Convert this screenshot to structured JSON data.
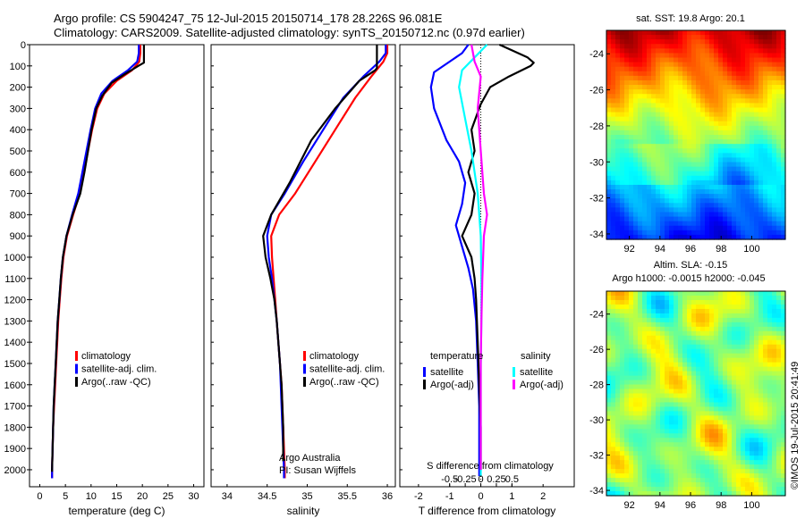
{
  "header": {
    "line1": "Argo profile: CS 5904247_75 12-Jul-2015 20150714_178 28.226S 96.081E",
    "line2": "Climatology: CARS2009. Satellite-adjusted climatology: synTS_20150712.nc (0.97d earlier)"
  },
  "side_stamp": "©IMOS 19-Jul-2015 20:41:49",
  "colors": {
    "red": "#ff0000",
    "blue": "#0000ff",
    "black": "#000000",
    "cyan": "#00ffff",
    "magenta": "#ff00ff"
  },
  "chart_data": [
    {
      "id": "temperature",
      "type": "line",
      "xlabel": "temperature (deg C)",
      "xlim": [
        -2,
        32
      ],
      "xticks": [
        0,
        5,
        10,
        15,
        20,
        25,
        30
      ],
      "ylim": [
        2080,
        0
      ],
      "yticks": [
        0,
        100,
        200,
        300,
        400,
        500,
        600,
        700,
        800,
        900,
        1000,
        1100,
        1200,
        1300,
        1400,
        1500,
        1600,
        1700,
        1800,
        1900,
        2000
      ],
      "legend": {
        "placement": "lower-middle",
        "entries": [
          "climatology",
          "satellite-adj. clim.",
          "Argo(..raw -QC)"
        ]
      },
      "series": [
        {
          "name": "climatology",
          "color": "#ff0000",
          "points": [
            [
              19.6,
              0
            ],
            [
              19.6,
              40
            ],
            [
              19.4,
              80
            ],
            [
              18,
              120
            ],
            [
              15,
              170
            ],
            [
              12.6,
              230
            ],
            [
              11.2,
              300
            ],
            [
              10.2,
              400
            ],
            [
              9.4,
              500
            ],
            [
              8.6,
              600
            ],
            [
              7.8,
              700
            ],
            [
              6.5,
              800
            ],
            [
              5.3,
              900
            ],
            [
              4.6,
              1000
            ],
            [
              4.2,
              1100
            ],
            [
              3.9,
              1200
            ],
            [
              3.6,
              1300
            ],
            [
              3.4,
              1400
            ],
            [
              3.2,
              1500
            ],
            [
              3.0,
              1600
            ],
            [
              2.8,
              1700
            ],
            [
              2.6,
              1800
            ],
            [
              2.5,
              1900
            ],
            [
              2.4,
              2000
            ],
            [
              2.4,
              2040
            ]
          ]
        },
        {
          "name": "satellite-adj. clim.",
          "color": "#0000ff",
          "points": [
            [
              19.3,
              0
            ],
            [
              19.3,
              40
            ],
            [
              19.0,
              80
            ],
            [
              17.2,
              120
            ],
            [
              14.2,
              170
            ],
            [
              12.0,
              230
            ],
            [
              10.8,
              300
            ],
            [
              9.9,
              400
            ],
            [
              9.1,
              500
            ],
            [
              8.3,
              600
            ],
            [
              7.5,
              700
            ],
            [
              6.3,
              800
            ],
            [
              5.2,
              900
            ],
            [
              4.5,
              1000
            ],
            [
              4.1,
              1100
            ],
            [
              3.8,
              1200
            ],
            [
              3.5,
              1300
            ],
            [
              3.3,
              1400
            ],
            [
              3.1,
              1500
            ],
            [
              2.9,
              1600
            ],
            [
              2.7,
              1700
            ],
            [
              2.6,
              1800
            ],
            [
              2.5,
              1900
            ],
            [
              2.4,
              2000
            ],
            [
              2.4,
              2040
            ]
          ]
        },
        {
          "name": "Argo(..raw -QC)",
          "color": "#000000",
          "points": [
            [
              20.3,
              0
            ],
            [
              20.3,
              85
            ],
            [
              19.2,
              100
            ],
            [
              16.5,
              140
            ],
            [
              14.0,
              180
            ],
            [
              12.2,
              240
            ],
            [
              11.0,
              300
            ],
            [
              10.1,
              400
            ],
            [
              9.4,
              500
            ],
            [
              8.7,
              600
            ],
            [
              7.9,
              700
            ],
            [
              6.4,
              800
            ],
            [
              5.2,
              900
            ],
            [
              4.5,
              1000
            ],
            [
              4.1,
              1100
            ],
            [
              3.8,
              1200
            ],
            [
              3.5,
              1300
            ],
            [
              3.3,
              1400
            ],
            [
              3.1,
              1500
            ],
            [
              2.9,
              1600
            ],
            [
              2.7,
              1700
            ],
            [
              2.6,
              1800
            ],
            [
              2.5,
              1900
            ],
            [
              2.4,
              2000
            ],
            [
              2.4,
              2010
            ]
          ]
        }
      ]
    },
    {
      "id": "salinity",
      "type": "line",
      "xlabel": "salinity",
      "xlim": [
        33.8,
        36.1
      ],
      "xticks": [
        34,
        34.5,
        35,
        35.5,
        36
      ],
      "ylim": [
        2080,
        0
      ],
      "legend": {
        "placement": "lower-middle",
        "entries": [
          "climatology",
          "satellite-adj. clim.",
          "Argo(..raw -QC)"
        ]
      },
      "annotation": [
        "Argo Australia",
        "PI: Susan Wijffels"
      ],
      "series": [
        {
          "name": "climatology",
          "color": "#ff0000",
          "points": [
            [
              36.0,
              0
            ],
            [
              36.0,
              40
            ],
            [
              35.95,
              80
            ],
            [
              35.8,
              150
            ],
            [
              35.6,
              250
            ],
            [
              35.35,
              400
            ],
            [
              35.1,
              550
            ],
            [
              34.85,
              700
            ],
            [
              34.65,
              800
            ],
            [
              34.55,
              900
            ],
            [
              34.56,
              1000
            ],
            [
              34.58,
              1100
            ],
            [
              34.6,
              1200
            ],
            [
              34.62,
              1300
            ],
            [
              34.64,
              1400
            ],
            [
              34.66,
              1500
            ],
            [
              34.68,
              1600
            ],
            [
              34.69,
              1700
            ],
            [
              34.7,
              1800
            ],
            [
              34.71,
              1900
            ],
            [
              34.72,
              2000
            ],
            [
              34.72,
              2040
            ]
          ]
        },
        {
          "name": "satellite-adj. clim.",
          "color": "#0000ff",
          "points": [
            [
              35.98,
              0
            ],
            [
              35.98,
              40
            ],
            [
              35.9,
              80
            ],
            [
              35.7,
              150
            ],
            [
              35.45,
              250
            ],
            [
              35.2,
              400
            ],
            [
              34.95,
              550
            ],
            [
              34.72,
              700
            ],
            [
              34.55,
              800
            ],
            [
              34.5,
              900
            ],
            [
              34.52,
              1000
            ],
            [
              34.56,
              1100
            ],
            [
              34.59,
              1200
            ],
            [
              34.62,
              1300
            ],
            [
              34.64,
              1400
            ],
            [
              34.66,
              1500
            ],
            [
              34.67,
              1600
            ],
            [
              34.68,
              1700
            ],
            [
              34.69,
              1800
            ],
            [
              34.7,
              1900
            ],
            [
              34.71,
              2000
            ],
            [
              34.71,
              2040
            ]
          ]
        },
        {
          "name": "Argo(..raw -QC)",
          "color": "#000000",
          "points": [
            [
              35.87,
              0
            ],
            [
              35.87,
              110
            ],
            [
              35.85,
              120
            ],
            [
              35.65,
              170
            ],
            [
              35.35,
              300
            ],
            [
              35.05,
              450
            ],
            [
              34.78,
              650
            ],
            [
              34.55,
              800
            ],
            [
              34.45,
              900
            ],
            [
              34.48,
              1000
            ],
            [
              34.54,
              1100
            ],
            [
              34.59,
              1200
            ],
            [
              34.62,
              1300
            ],
            [
              34.64,
              1400
            ],
            [
              34.66,
              1500
            ],
            [
              34.68,
              1600
            ],
            [
              34.69,
              1700
            ],
            [
              34.7,
              1800
            ],
            [
              34.7,
              1900
            ],
            [
              34.7,
              1960
            ]
          ]
        }
      ]
    },
    {
      "id": "differences",
      "type": "line",
      "xlabel": "T difference from climatology",
      "xlabel_top": "S difference from climatology",
      "xlim": [
        -2.6,
        3.0
      ],
      "xticks": [
        -2,
        -1,
        0,
        1,
        2
      ],
      "s_xticks": [
        -0.5,
        -0.25,
        0,
        0.25,
        0.5
      ],
      "ylim": [
        2080,
        0
      ],
      "zero_line": true,
      "legend": {
        "placement": "lower",
        "temperature_title": "temperature",
        "salinity_title": "salinity",
        "entries": [
          "satellite",
          "Argo(-adj)",
          "satellite",
          "Argo(-adj)"
        ]
      },
      "series": [
        {
          "name": "T satellite",
          "color": "#0000ff",
          "points": [
            [
              -0.4,
              0
            ],
            [
              -0.6,
              40
            ],
            [
              -1.0,
              80
            ],
            [
              -1.5,
              130
            ],
            [
              -1.6,
              200
            ],
            [
              -1.5,
              300
            ],
            [
              -1.1,
              450
            ],
            [
              -0.7,
              550
            ],
            [
              -0.5,
              650
            ],
            [
              -0.6,
              750
            ],
            [
              -0.8,
              850
            ],
            [
              -0.6,
              950
            ],
            [
              -0.4,
              1050
            ],
            [
              -0.25,
              1150
            ],
            [
              -0.15,
              1300
            ],
            [
              -0.1,
              1500
            ],
            [
              -0.05,
              1700
            ],
            [
              -0.05,
              2000
            ],
            [
              -0.05,
              2030
            ]
          ]
        },
        {
          "name": "T Argo(-adj)",
          "color": "#000000",
          "points": [
            [
              0.6,
              0
            ],
            [
              1.5,
              60
            ],
            [
              1.7,
              85
            ],
            [
              1.6,
              100
            ],
            [
              0.9,
              150
            ],
            [
              0.3,
              200
            ],
            [
              0.0,
              280
            ],
            [
              -0.3,
              400
            ],
            [
              -0.2,
              500
            ],
            [
              -0.4,
              600
            ],
            [
              -0.2,
              700
            ],
            [
              -0.3,
              800
            ],
            [
              -0.6,
              900
            ],
            [
              -0.3,
              1000
            ],
            [
              -0.2,
              1100
            ],
            [
              -0.15,
              1200
            ],
            [
              -0.1,
              1400
            ],
            [
              -0.05,
              1600
            ],
            [
              0.0,
              1800
            ],
            [
              0.0,
              2000
            ]
          ]
        },
        {
          "name": "S satellite",
          "color": "#00ffff",
          "points": [
            [
              0.2,
              0
            ],
            [
              -0.2,
              60
            ],
            [
              -0.6,
              120
            ],
            [
              -0.7,
              200
            ],
            [
              -0.5,
              350
            ],
            [
              -0.3,
              500
            ],
            [
              -0.1,
              700
            ],
            [
              0.0,
              900
            ],
            [
              0.02,
              1100
            ],
            [
              0.02,
              1300
            ],
            [
              0.0,
              1500
            ],
            [
              0.0,
              1700
            ],
            [
              0.0,
              2000
            ],
            [
              0.0,
              2030
            ]
          ]
        },
        {
          "name": "S Argo(-adj)",
          "color": "#ff00ff",
          "points": [
            [
              -0.3,
              0
            ],
            [
              -0.2,
              80
            ],
            [
              0.0,
              150
            ],
            [
              -0.1,
              300
            ],
            [
              0.0,
              500
            ],
            [
              0.1,
              700
            ],
            [
              0.2,
              800
            ],
            [
              0.1,
              900
            ],
            [
              0.05,
              1100
            ],
            [
              0.02,
              1300
            ],
            [
              0.0,
              1500
            ],
            [
              0.0,
              1700
            ],
            [
              0.0,
              1900
            ],
            [
              0.0,
              2000
            ]
          ]
        }
      ]
    },
    {
      "id": "sst_map",
      "type": "heatmap",
      "title": "sat. SST: 19.8  Argo: 20.1",
      "xticks": [
        92,
        94,
        96,
        98,
        100
      ],
      "yticks": [
        -24,
        -26,
        -28,
        -30,
        -32,
        -34
      ],
      "xlim": [
        90.5,
        102.2
      ],
      "ylim": [
        -34.3,
        -22.7
      ]
    },
    {
      "id": "sla_map",
      "type": "heatmap",
      "title": "Altim. SLA: -0.15",
      "subtitle": "Argo h1000: -0.0015  h2000: -0.045",
      "xticks": [
        92,
        94,
        96,
        98,
        100
      ],
      "yticks": [
        -24,
        -26,
        -28,
        -30,
        -32,
        -34
      ],
      "xlim": [
        90.5,
        102.2
      ],
      "ylim": [
        -34.3,
        -22.7
      ]
    }
  ]
}
